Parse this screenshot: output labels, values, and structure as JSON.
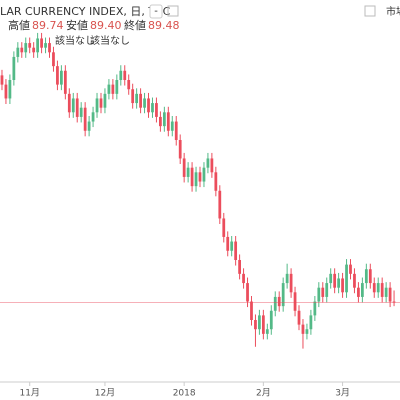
{
  "header": {
    "title": "LAR CURRENCY INDEX, 日, TVC",
    "collapse": "-",
    "market": "市場",
    "ohlc": [
      {
        "label": "高値",
        "value": "89.74"
      },
      {
        "label": "安値",
        "value": "89.40"
      },
      {
        "label": "終値",
        "value": "89.48"
      }
    ],
    "indicators": [
      "該当なし",
      "該当なし"
    ]
  },
  "chart_data": {
    "type": "candlestick",
    "up_color": "#53b987",
    "down_color": "#eb4d5c",
    "price_line_color": "#eb4d5c",
    "xlim": [
      -0.5,
      100.5
    ],
    "ylim": [
      87.8,
      95.6
    ],
    "xticks": [
      {
        "value": 7,
        "label": "11月"
      },
      {
        "value": 26,
        "label": "12月"
      },
      {
        "value": 46,
        "label": "2018"
      },
      {
        "value": 66,
        "label": "2月"
      },
      {
        "value": 86,
        "label": "3月"
      }
    ],
    "open": [
      94.4,
      94.2,
      93.9,
      94.3,
      94.8,
      95.0,
      94.9,
      95.1,
      95.0,
      94.9,
      95.2,
      95.0,
      95.1,
      94.9,
      94.6,
      94.2,
      94.5,
      94.0,
      93.6,
      93.9,
      93.5,
      93.7,
      93.2,
      93.4,
      93.6,
      93.9,
      93.7,
      94.0,
      94.2,
      94.0,
      94.3,
      94.5,
      94.3,
      94.1,
      93.8,
      94.0,
      93.7,
      93.9,
      93.6,
      93.8,
      93.5,
      93.3,
      93.6,
      93.2,
      93.4,
      93.0,
      92.6,
      92.2,
      92.4,
      92.0,
      92.3,
      92.1,
      92.4,
      92.6,
      92.3,
      91.9,
      91.3,
      90.9,
      90.6,
      90.8,
      90.4,
      90.1,
      89.9,
      89.5,
      89.1,
      88.9,
      89.2,
      88.8,
      88.9,
      89.3,
      89.6,
      89.4,
      89.9,
      90.1,
      89.7,
      89.3,
      89.0,
      88.8,
      88.9,
      89.2,
      89.5,
      89.8,
      89.6,
      89.9,
      90.1,
      89.8,
      90.0,
      89.7,
      90.3,
      90.1,
      89.8,
      89.6,
      89.9,
      90.2,
      89.9,
      89.7,
      89.9,
      89.6,
      89.8,
      89.5
    ],
    "high": [
      94.52,
      94.32,
      94.42,
      94.92,
      95.12,
      95.12,
      95.22,
      95.22,
      95.12,
      95.32,
      95.32,
      95.22,
      95.22,
      95.02,
      94.72,
      94.62,
      94.62,
      94.12,
      94.02,
      94.02,
      93.82,
      93.82,
      93.52,
      93.72,
      94.02,
      94.02,
      94.12,
      94.32,
      94.32,
      94.42,
      94.62,
      94.62,
      94.42,
      94.22,
      94.12,
      94.12,
      94.02,
      94.02,
      93.92,
      93.92,
      93.62,
      93.72,
      93.72,
      93.52,
      93.52,
      93.12,
      92.72,
      92.52,
      92.52,
      92.42,
      92.42,
      92.52,
      92.72,
      92.72,
      92.42,
      92.02,
      91.42,
      91.02,
      90.92,
      90.92,
      90.52,
      90.22,
      90.02,
      89.62,
      89.22,
      89.32,
      89.32,
      89.02,
      89.42,
      89.72,
      89.72,
      90.02,
      90.32,
      90.22,
      89.82,
      89.42,
      89.12,
      89.02,
      89.32,
      89.62,
      89.92,
      89.92,
      90.02,
      90.22,
      90.22,
      90.12,
      90.12,
      90.42,
      90.42,
      90.22,
      89.92,
      90.02,
      90.32,
      90.32,
      90.02,
      90.02,
      90.02,
      89.92,
      89.92,
      89.74
    ],
    "low": [
      94.08,
      93.78,
      93.78,
      94.18,
      94.68,
      94.78,
      94.78,
      94.88,
      94.78,
      94.78,
      94.88,
      94.88,
      94.78,
      94.48,
      94.08,
      94.08,
      93.88,
      93.48,
      93.48,
      93.38,
      93.38,
      93.08,
      93.08,
      93.28,
      93.48,
      93.58,
      93.58,
      93.88,
      93.88,
      93.88,
      94.18,
      94.18,
      93.98,
      93.68,
      93.68,
      93.58,
      93.58,
      93.48,
      93.48,
      93.38,
      93.18,
      93.18,
      93.08,
      93.08,
      92.88,
      92.48,
      92.08,
      92.08,
      91.88,
      91.88,
      91.98,
      91.98,
      92.28,
      92.18,
      91.78,
      91.18,
      90.78,
      90.48,
      90.48,
      90.28,
      89.98,
      89.78,
      89.38,
      88.98,
      88.52,
      88.78,
      88.68,
      88.68,
      88.78,
      89.18,
      89.28,
      89.28,
      89.78,
      89.58,
      89.18,
      88.88,
      88.48,
      88.68,
      88.78,
      89.08,
      89.38,
      89.48,
      89.48,
      89.78,
      89.68,
      89.68,
      89.58,
      89.58,
      89.98,
      89.68,
      89.48,
      89.48,
      89.78,
      89.78,
      89.58,
      89.58,
      89.48,
      89.48,
      89.38,
      89.4
    ],
    "close": [
      94.2,
      93.9,
      94.3,
      94.8,
      95.0,
      94.9,
      95.1,
      95.0,
      94.9,
      95.2,
      95.0,
      95.1,
      94.9,
      94.6,
      94.2,
      94.5,
      94.0,
      93.6,
      93.9,
      93.5,
      93.7,
      93.2,
      93.4,
      93.6,
      93.9,
      93.7,
      94.0,
      94.2,
      94.0,
      94.3,
      94.5,
      94.3,
      94.1,
      93.8,
      94.0,
      93.7,
      93.9,
      93.6,
      93.8,
      93.5,
      93.3,
      93.6,
      93.2,
      93.4,
      93.0,
      92.6,
      92.2,
      92.4,
      92.0,
      92.3,
      92.1,
      92.4,
      92.6,
      92.3,
      91.9,
      91.3,
      90.9,
      90.6,
      90.8,
      90.4,
      90.1,
      89.9,
      89.5,
      89.1,
      88.9,
      89.2,
      88.8,
      88.9,
      89.3,
      89.6,
      89.4,
      89.9,
      90.1,
      89.7,
      89.3,
      89.0,
      88.8,
      88.9,
      89.2,
      89.5,
      89.8,
      89.6,
      89.9,
      90.1,
      89.8,
      90.0,
      89.7,
      90.3,
      90.1,
      89.8,
      89.6,
      89.9,
      90.2,
      89.9,
      89.7,
      89.9,
      89.6,
      89.8,
      89.5,
      89.48
    ]
  }
}
